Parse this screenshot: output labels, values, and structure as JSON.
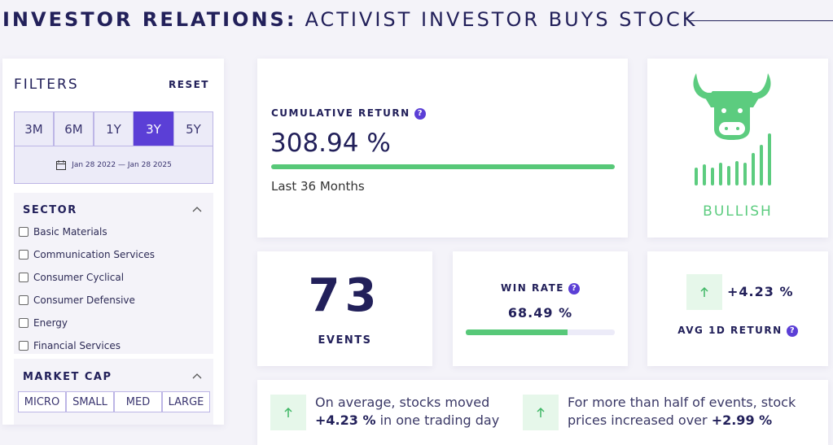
{
  "header": {
    "title_bold": "INVESTOR RELATIONS:",
    "title_light": "ACTIVIST INVESTOR BUYS STOCK"
  },
  "filters": {
    "title": "FILTERS",
    "reset": "RESET",
    "periods": [
      "3M",
      "6M",
      "1Y",
      "3Y",
      "5Y"
    ],
    "date_range": "Jan 28 2022 — Jan 28 2025"
  },
  "sector": {
    "title": "SECTOR",
    "options": [
      "Basic Materials",
      "Communication Services",
      "Consumer Cyclical",
      "Consumer Defensive",
      "Energy",
      "Financial Services"
    ]
  },
  "market_cap": {
    "title": "MARKET CAP",
    "options": [
      "MICRO",
      "SMALL",
      "MED",
      "LARGE"
    ]
  },
  "help_icon": "?",
  "cumulative_return": {
    "label": "CUMULATIVE RETURN",
    "value": "308.94 %",
    "period": "Last 36 Months"
  },
  "signal": "BULLISH",
  "events": {
    "value": "73",
    "label": "EVENTS"
  },
  "win_rate": {
    "label": "WIN RATE",
    "value": "68.49 %"
  },
  "avg_1d_return": {
    "value": "+4.23 %",
    "label": "AVG 1D RETURN"
  },
  "insights": [
    {
      "text_before": "On average, stocks moved ",
      "highlight": "+4.23 %",
      "text_after": " in one trading day"
    },
    {
      "text_before": "For more than half of events, stock prices increased over ",
      "highlight": "+2.99 %"
    }
  ]
}
